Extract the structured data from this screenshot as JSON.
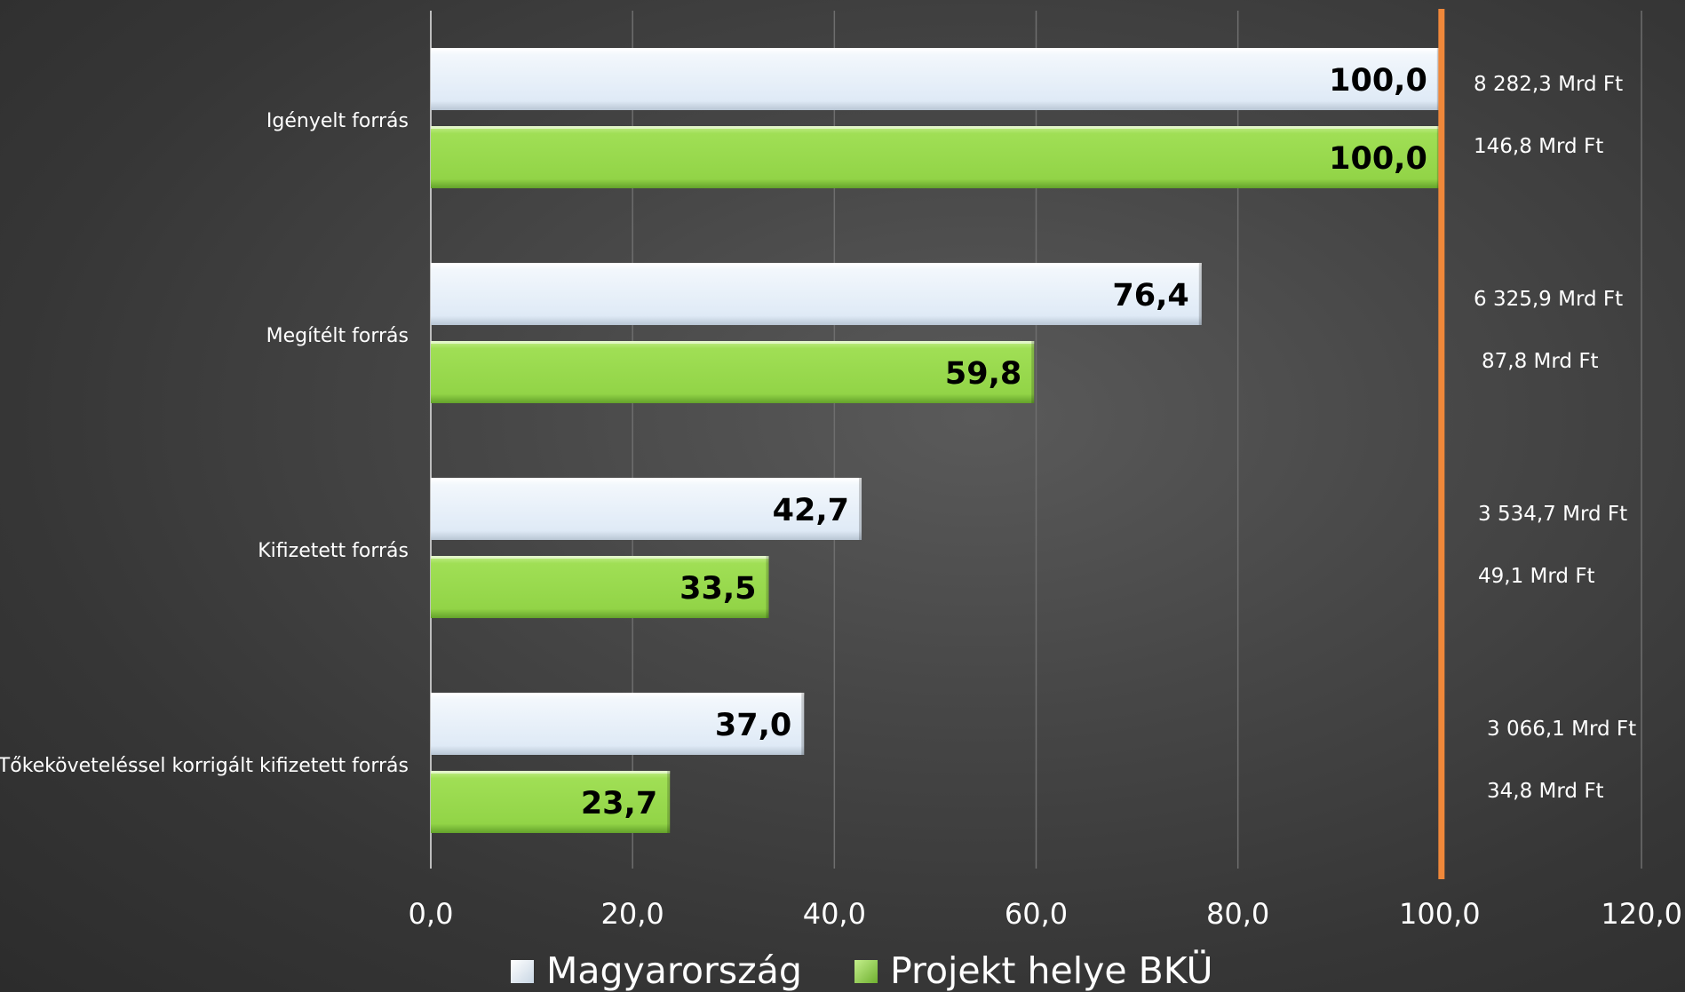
{
  "chart_data": {
    "type": "bar",
    "orientation": "horizontal",
    "categories": [
      "Igényelt forrás",
      "Megítélt forrás",
      "Kifizetett forrás",
      "Tőkeköveteléssel korrigált kifizetett forrás"
    ],
    "series": [
      {
        "name": "Magyarország",
        "values": [
          100.0,
          76.4,
          42.7,
          37.0
        ],
        "value_labels": [
          "100,0",
          "76,4",
          "42,7",
          "37,0"
        ],
        "side_labels": [
          "8 282,3 Mrd Ft",
          "6 325,9 Mrd Ft",
          "3 534,7 Mrd Ft",
          "3 066,1 Mrd Ft"
        ],
        "color": "#e6f0fa"
      },
      {
        "name": "Projekt helye BKÜ",
        "values": [
          100.0,
          59.8,
          33.5,
          23.7
        ],
        "value_labels": [
          "100,0",
          "59,8",
          "33,5",
          "23,7"
        ],
        "side_labels": [
          "146,8 Mrd Ft",
          "87,8 Mrd Ft",
          "49,1 Mrd Ft",
          "34,8 Mrd Ft"
        ],
        "color": "#95d848"
      }
    ],
    "x_ticks": [
      "0,0",
      "20,0",
      "40,0",
      "60,0",
      "80,0",
      "100,0",
      "120,0"
    ],
    "xlim": [
      0,
      120
    ],
    "reference_line": {
      "value": 100,
      "color": "#f0883a"
    },
    "grid": true,
    "legend_position": "bottom",
    "title": "",
    "xlabel": "",
    "ylabel": ""
  }
}
